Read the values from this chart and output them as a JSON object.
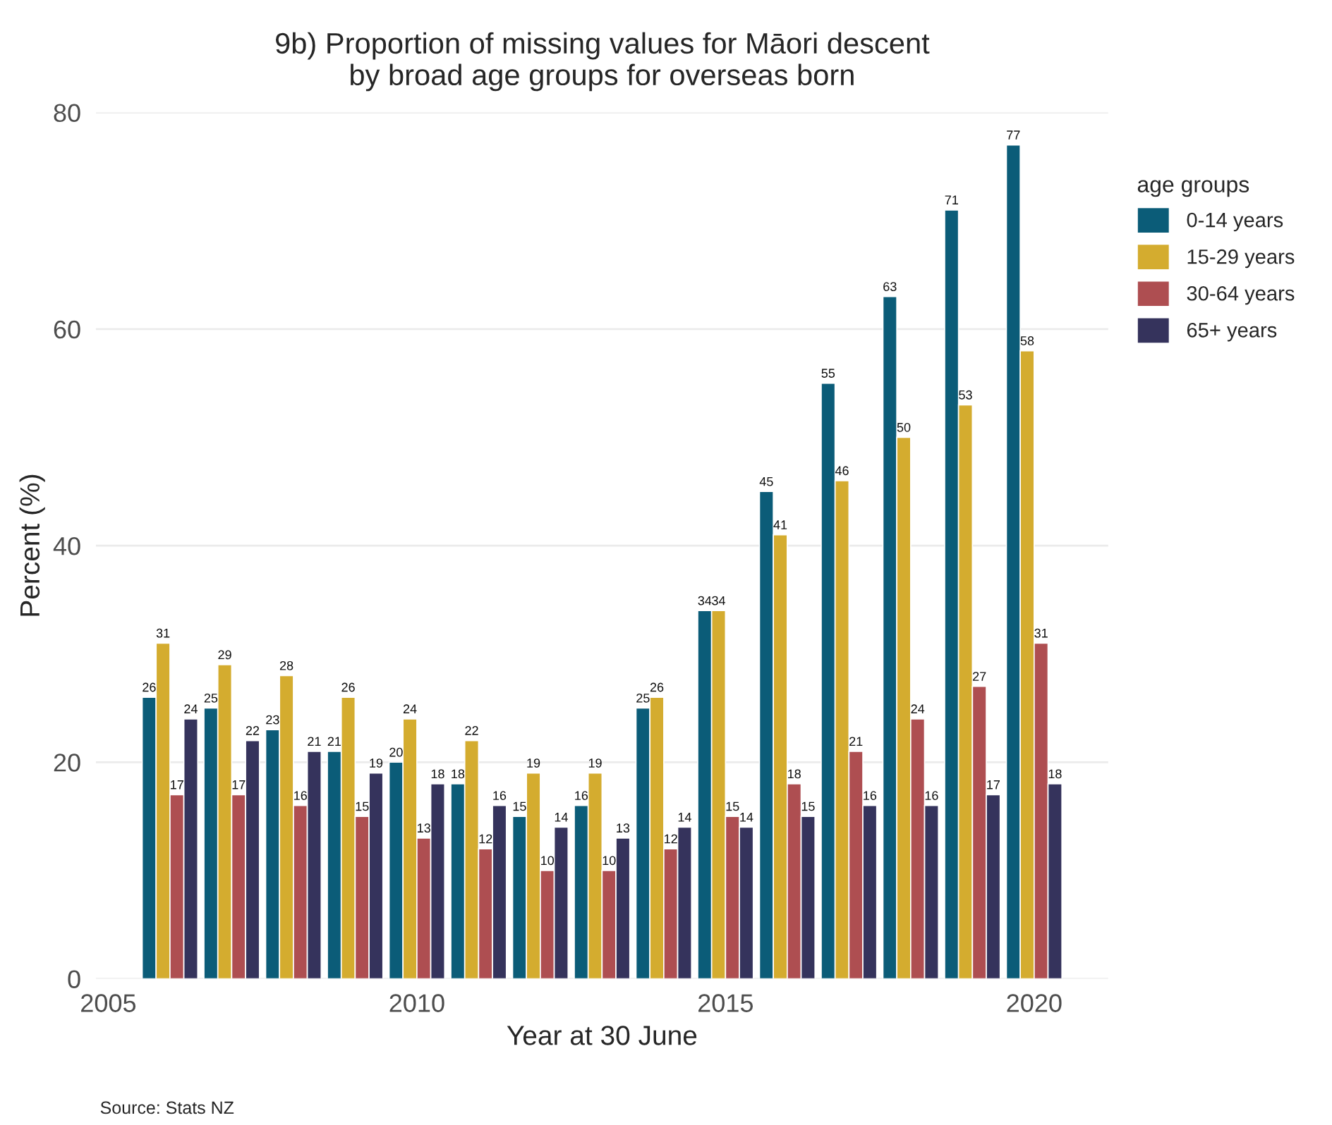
{
  "chart_data": {
    "type": "bar",
    "title": "9b) Proportion of missing values for Māori descent\nby broad age groups for overseas born",
    "xlabel": "Year at 30 June",
    "ylabel": "Percent (%)",
    "legend_title": "age groups",
    "x": [
      2006,
      2007,
      2008,
      2009,
      2010,
      2011,
      2012,
      2013,
      2014,
      2015,
      2016,
      2017,
      2018,
      2019,
      2020
    ],
    "series": [
      {
        "name": "0-14 years",
        "color": "#0b5c78",
        "values": [
          26,
          25,
          23,
          21,
          20,
          18,
          15,
          16,
          25,
          34,
          45,
          55,
          63,
          71,
          77
        ]
      },
      {
        "name": "15-29 years",
        "color": "#d4ac2f",
        "values": [
          31,
          29,
          28,
          26,
          24,
          22,
          19,
          19,
          26,
          34,
          41,
          46,
          50,
          53,
          58
        ]
      },
      {
        "name": "30-64 years",
        "color": "#ae4e51",
        "values": [
          17,
          17,
          16,
          15,
          13,
          12,
          10,
          10,
          12,
          15,
          18,
          21,
          24,
          27,
          31
        ]
      },
      {
        "name": "65+ years",
        "color": "#35335c",
        "values": [
          24,
          22,
          21,
          19,
          18,
          16,
          14,
          13,
          14,
          14,
          15,
          16,
          16,
          17,
          18
        ]
      }
    ],
    "data_labels": true,
    "xlim": [
      2004.8,
      2021.2
    ],
    "xticks": [
      2005,
      2010,
      2015,
      2020
    ],
    "ylim": [
      0,
      80
    ],
    "yticks": [
      0,
      20,
      40,
      60,
      80
    ],
    "grid": "y",
    "legend": "right",
    "annotations": [
      "Source: Stats NZ"
    ]
  }
}
